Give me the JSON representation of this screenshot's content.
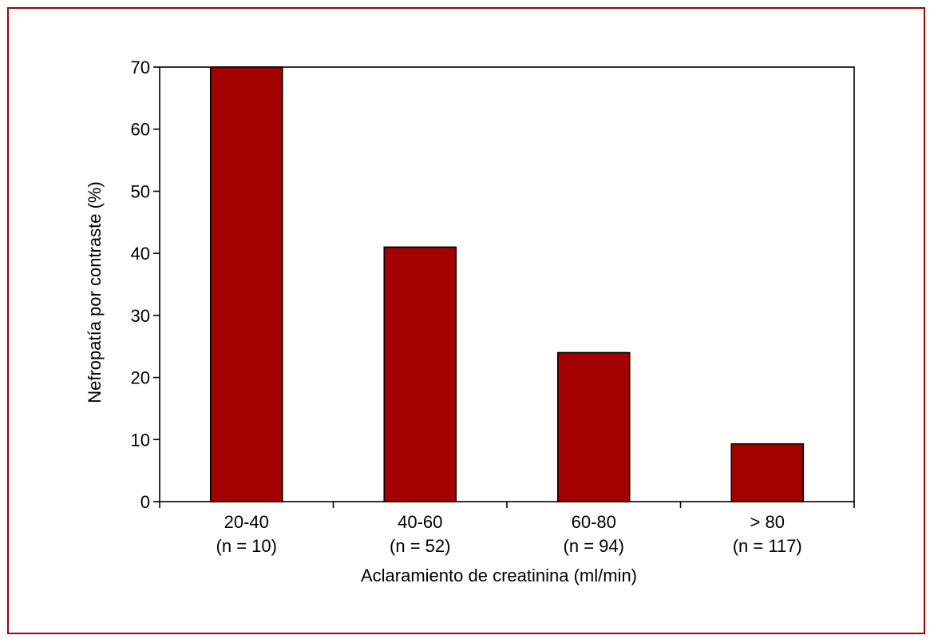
{
  "colors": {
    "frame_border": "#a50000",
    "bar_fill": "#a30000",
    "axis": "#000000"
  },
  "chart_data": {
    "type": "bar",
    "categories": [
      "20-40",
      "40-60",
      "60-80",
      "> 80"
    ],
    "category_sublabels": [
      "(n = 10)",
      "(n = 52)",
      "(n = 94)",
      "(n = 117)"
    ],
    "values": [
      70,
      41,
      24,
      9.3
    ],
    "title": "",
    "xlabel": "Aclaramiento de creatinina (ml/min)",
    "ylabel": "Nefropatía por contraste (%)",
    "ylim": [
      0,
      70
    ],
    "yticks": [
      0,
      10,
      20,
      30,
      40,
      50,
      60,
      70
    ],
    "grid": false,
    "legend": "none"
  }
}
